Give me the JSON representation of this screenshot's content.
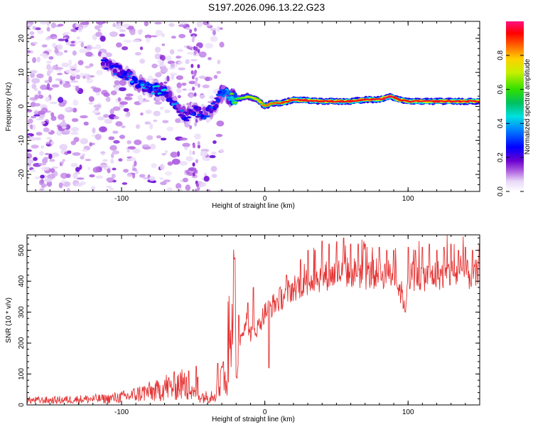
{
  "title": "S197.2026.096.13.22.G23",
  "colorbar": {
    "label": "Normalized spectral amplitude",
    "ticks": [
      "0.0",
      "0.2",
      "0.4",
      "0.6",
      "0.8"
    ],
    "tick_values": [
      0.0,
      0.2,
      0.4,
      0.6,
      0.8
    ],
    "range": [
      0,
      1
    ]
  },
  "chart_data": [
    {
      "type": "heatmap",
      "title": "",
      "xlabel": "Height of straight line (km)",
      "ylabel": "Frequency (Hz)",
      "xlim": [
        -166,
        150
      ],
      "ylim": [
        -25,
        25
      ],
      "xticks": [
        -100,
        0,
        100
      ],
      "yticks": [
        -20,
        -10,
        0,
        10,
        20
      ],
      "xtick_labels": [
        "-100",
        "0",
        "100"
      ],
      "ytick_labels": [
        "-20",
        "-10",
        "0",
        "10",
        "20"
      ],
      "ridge": {
        "description": "high-amplitude frequency trace vs height",
        "x": [
          -113,
          -105,
          -95,
          -88,
          -80,
          -73,
          -66,
          -60,
          -55,
          -50,
          -45,
          -40,
          -35,
          -30,
          -25,
          -20,
          -12,
          -5,
          0,
          5,
          12,
          20,
          40,
          60,
          70,
          80,
          88,
          93,
          100,
          120,
          150
        ],
        "y": [
          13,
          11,
          9,
          7,
          5,
          5,
          3,
          -1,
          -3,
          -1,
          -2,
          -2,
          0,
          4,
          3,
          2,
          3,
          2,
          0,
          1,
          1,
          2,
          1.5,
          1.5,
          2,
          2,
          3,
          2,
          1.5,
          1.5,
          1.5
        ],
        "amplitude": [
          0.25,
          0.3,
          0.32,
          0.35,
          0.38,
          0.4,
          0.35,
          0.3,
          0.28,
          0.27,
          0.28,
          0.27,
          0.28,
          0.4,
          0.5,
          0.6,
          0.7,
          0.75,
          0.85,
          0.85,
          0.9,
          0.95,
          0.95,
          0.95,
          0.95,
          0.95,
          0.97,
          0.92,
          0.95,
          0.95,
          0.95
        ]
      },
      "noise_region_x": [
        -166,
        -30
      ]
    },
    {
      "type": "line",
      "title": "",
      "xlabel": "Height of straight line (km)",
      "ylabel": "SNR (10 * v/v)",
      "xlim": [
        -166,
        150
      ],
      "ylim": [
        0,
        550
      ],
      "xticks": [
        -100,
        0,
        100
      ],
      "yticks": [
        0,
        100,
        200,
        300,
        400,
        500
      ],
      "xtick_labels": [
        "-100",
        "0",
        "100"
      ],
      "ytick_labels": [
        "0",
        "100",
        "200",
        "300",
        "400",
        "500"
      ],
      "series": [
        {
          "name": "SNR",
          "color": "#e53333",
          "x": [
            -166,
            -150,
            -130,
            -110,
            -95,
            -85,
            -75,
            -70,
            -65,
            -60,
            -55,
            -50,
            -45,
            -40,
            -35,
            -32,
            -30,
            -27,
            -24,
            -21,
            -20,
            -18,
            -15,
            -13,
            -10,
            -5,
            0,
            10,
            20,
            30,
            40,
            50,
            60,
            70,
            80,
            90,
            98,
            100,
            110,
            120,
            130,
            140,
            150
          ],
          "y": [
            15,
            15,
            18,
            20,
            28,
            40,
            45,
            60,
            55,
            70,
            60,
            35,
            30,
            25,
            40,
            65,
            110,
            55,
            350,
            380,
            25,
            200,
            250,
            280,
            230,
            250,
            300,
            340,
            380,
            400,
            415,
            425,
            430,
            420,
            425,
            420,
            330,
            420,
            415,
            420,
            425,
            420,
            420
          ],
          "spikes": {
            "x": [
              -55,
              -53,
              -48,
              -47,
              -33,
              -30,
              -29,
              -21,
              -20,
              -18,
              -12,
              -8,
              3,
              15,
              25,
              30,
              35,
              40,
              45,
              50,
              55,
              60,
              65,
              70,
              75,
              80,
              85,
              90,
              98,
              100,
              105,
              110,
              115,
              120,
              125,
              130,
              135,
              140,
              145,
              150
            ],
            "y": [
              90,
              110,
              125,
              90,
              135,
              125,
              140,
              475,
              90,
              290,
              330,
              380,
              120,
              420,
              470,
              500,
              500,
              530,
              520,
              530,
              540,
              520,
              520,
              520,
              510,
              510,
              500,
              500,
              300,
              510,
              500,
              510,
              520,
              500,
              510,
              520,
              500,
              510,
              500,
              520
            ]
          }
        }
      ]
    }
  ]
}
